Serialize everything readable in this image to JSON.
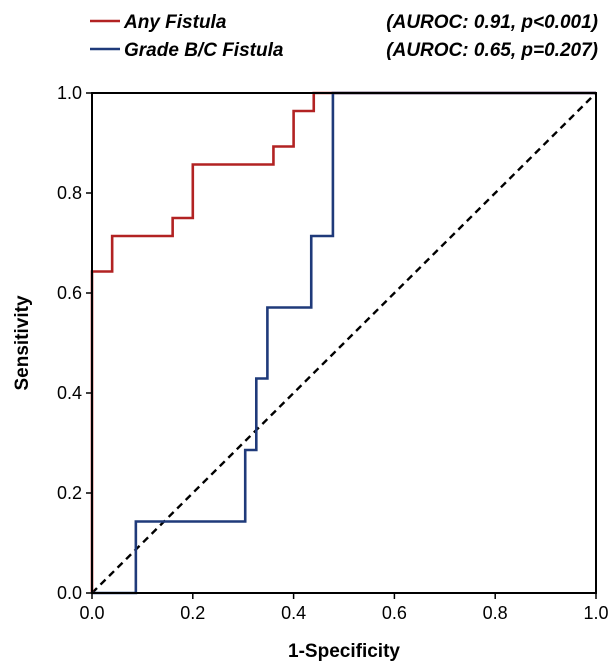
{
  "chart_data": {
    "type": "line",
    "title": "",
    "xlabel": "1-Specificity",
    "ylabel": "Sensitivity",
    "xlim": [
      0,
      1
    ],
    "ylim": [
      0,
      1
    ],
    "x_ticks": [
      "0.0",
      "0.2",
      "0.4",
      "0.6",
      "0.8",
      "1.0"
    ],
    "y_ticks": [
      "0.0",
      "0.2",
      "0.4",
      "0.6",
      "0.8",
      "1.0"
    ],
    "grid": false,
    "legend_position": "top",
    "series": [
      {
        "name": "Any Fistula",
        "stats": "(AUROC: 0.91, p<0.001)",
        "color": "#b22222",
        "points": [
          [
            0.0,
            0.0
          ],
          [
            0.0,
            0.643
          ],
          [
            0.04,
            0.643
          ],
          [
            0.04,
            0.714
          ],
          [
            0.16,
            0.714
          ],
          [
            0.16,
            0.75
          ],
          [
            0.2,
            0.75
          ],
          [
            0.2,
            0.857
          ],
          [
            0.36,
            0.857
          ],
          [
            0.36,
            0.893
          ],
          [
            0.4,
            0.893
          ],
          [
            0.4,
            0.964
          ],
          [
            0.44,
            0.964
          ],
          [
            0.44,
            1.0
          ],
          [
            1.0,
            1.0
          ]
        ]
      },
      {
        "name": "Grade B/C Fistula",
        "stats": "(AUROC: 0.65, p=0.207)",
        "color": "#1f3a7a",
        "points": [
          [
            0.0,
            0.0
          ],
          [
            0.087,
            0.0
          ],
          [
            0.087,
            0.143
          ],
          [
            0.304,
            0.143
          ],
          [
            0.304,
            0.286
          ],
          [
            0.326,
            0.286
          ],
          [
            0.326,
            0.429
          ],
          [
            0.348,
            0.429
          ],
          [
            0.348,
            0.571
          ],
          [
            0.435,
            0.571
          ],
          [
            0.435,
            0.714
          ],
          [
            0.478,
            0.714
          ],
          [
            0.478,
            1.0
          ],
          [
            1.0,
            1.0
          ]
        ]
      }
    ],
    "reference_line": {
      "points": [
        [
          0,
          0
        ],
        [
          1,
          1
        ]
      ],
      "style": "dashed",
      "color": "#000000"
    }
  }
}
